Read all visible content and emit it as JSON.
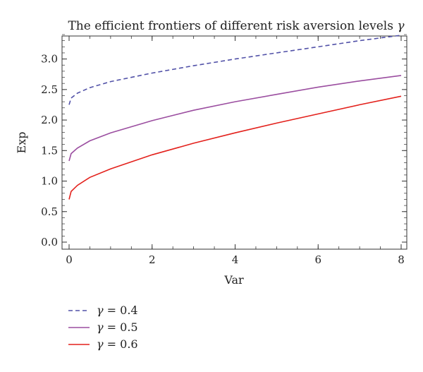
{
  "chart_data": {
    "type": "line",
    "title_prefix": "The efficient frontiers of different risk aversion levels",
    "title_symbol": "γ",
    "xlabel": "Var",
    "ylabel": "Exp",
    "xlim": [
      0,
      8
    ],
    "ylim": [
      0,
      3.4
    ],
    "xticks": [
      "0",
      "2",
      "4",
      "6",
      "8"
    ],
    "yticks": [
      "0.0",
      "0.5",
      "1.0",
      "1.5",
      "2.0",
      "2.5",
      "3.0"
    ],
    "legend_position": "bottom-left",
    "series": [
      {
        "name": "γ = 0.4",
        "symbol": "γ",
        "label_value": "= 0.4",
        "color": "#5252a8",
        "dash": "dashed",
        "x": [
          0.0,
          0.05,
          0.2,
          0.5,
          1,
          2,
          3,
          4,
          5,
          6,
          7,
          8
        ],
        "y": [
          2.25,
          2.36,
          2.44,
          2.53,
          2.63,
          2.77,
          2.89,
          3.0,
          3.1,
          3.2,
          3.3,
          3.39
        ]
      },
      {
        "name": "γ = 0.5",
        "symbol": "γ",
        "label_value": "= 0.5",
        "color": "#9b4ea0",
        "dash": "solid",
        "x": [
          0.0,
          0.05,
          0.2,
          0.5,
          1,
          2,
          3,
          4,
          5,
          6,
          7,
          8
        ],
        "y": [
          1.33,
          1.45,
          1.54,
          1.66,
          1.79,
          1.99,
          2.16,
          2.3,
          2.42,
          2.54,
          2.64,
          2.73
        ]
      },
      {
        "name": "γ = 0.6",
        "symbol": "γ",
        "label_value": "= 0.6",
        "color": "#e3211c",
        "dash": "solid",
        "x": [
          0.0,
          0.05,
          0.2,
          0.5,
          1,
          2,
          3,
          4,
          5,
          6,
          7,
          8
        ],
        "y": [
          0.7,
          0.83,
          0.93,
          1.06,
          1.2,
          1.43,
          1.62,
          1.79,
          1.95,
          2.1,
          2.25,
          2.39
        ]
      }
    ]
  }
}
